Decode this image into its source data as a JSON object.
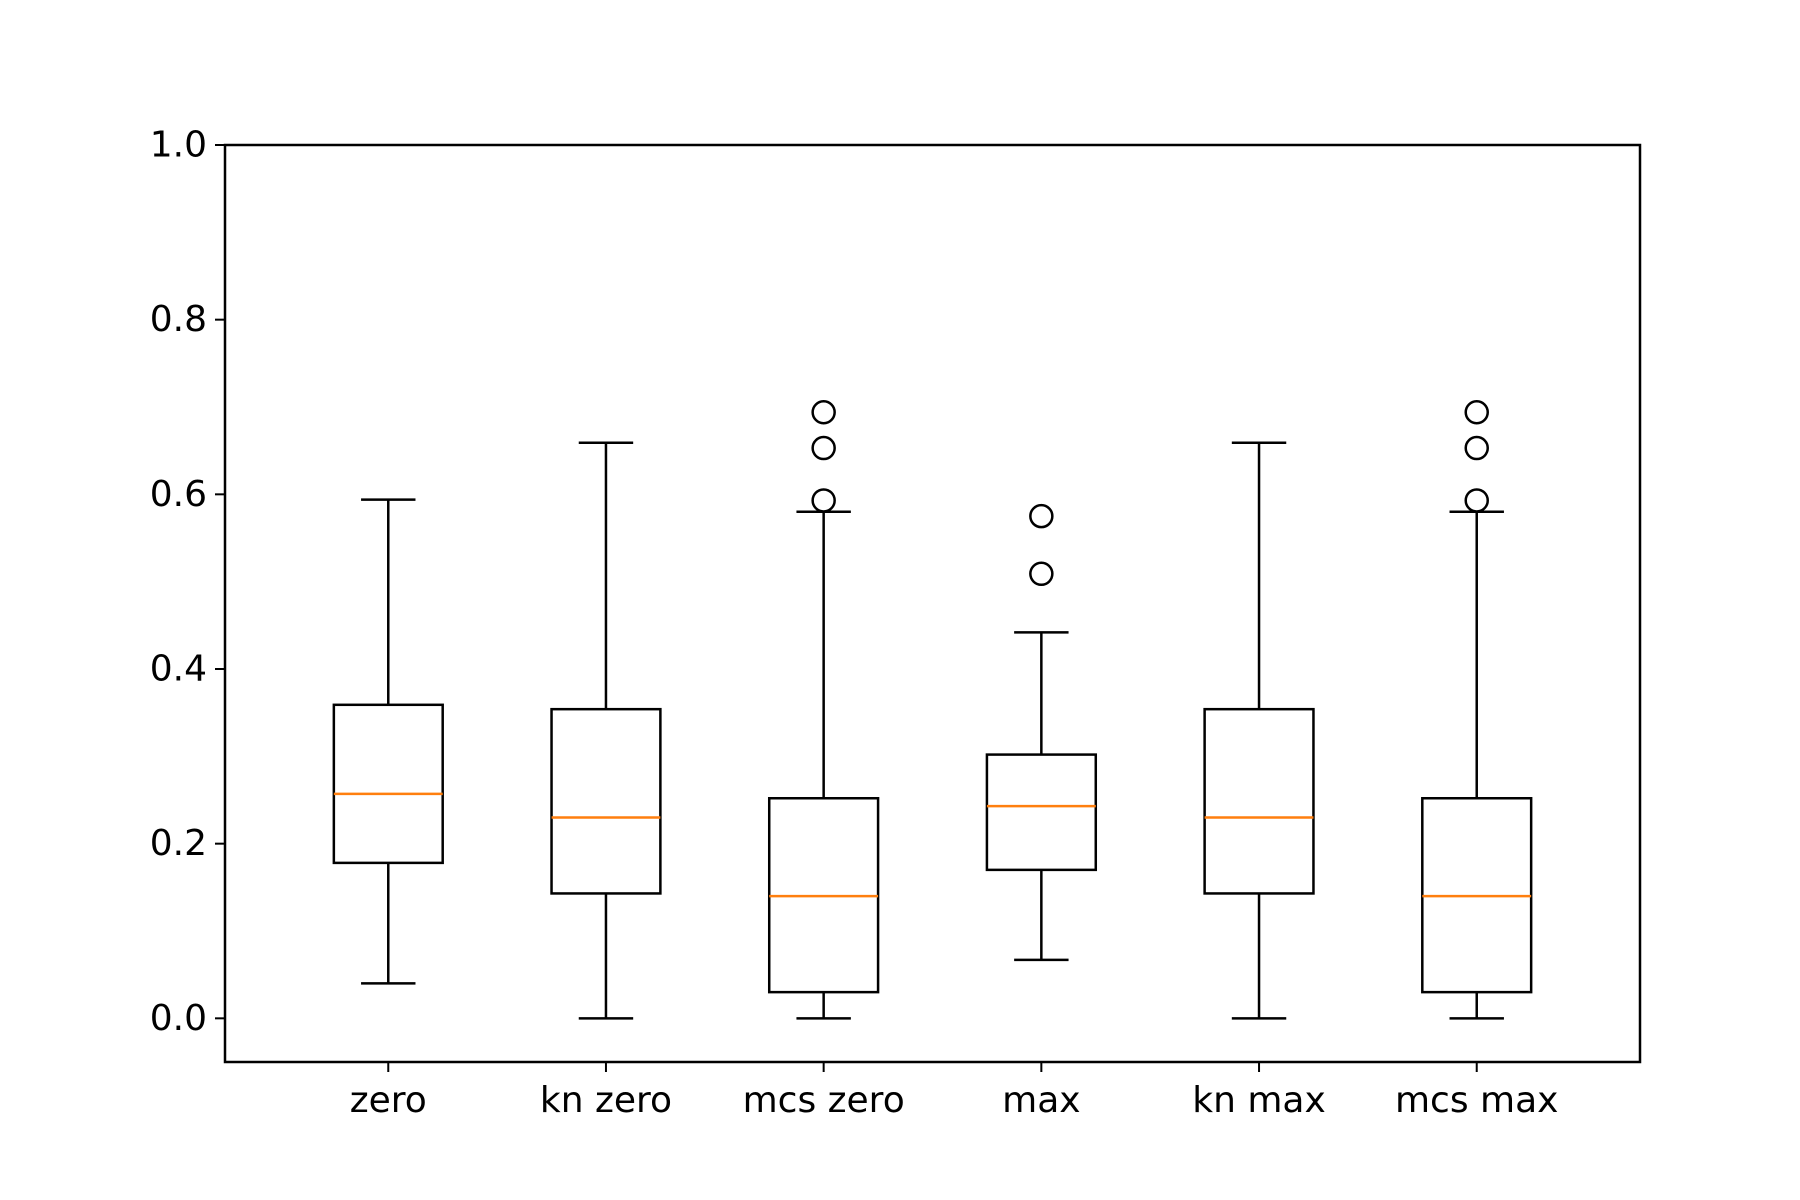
{
  "chart_data": {
    "type": "box",
    "title": "",
    "xlabel": "",
    "ylabel": "",
    "ylim": [
      -0.05,
      1.0
    ],
    "yticks": [
      0.0,
      0.2,
      0.4,
      0.6,
      0.8,
      1.0
    ],
    "ytick_labels": [
      "0.0",
      "0.2",
      "0.4",
      "0.6",
      "0.8",
      "1.0"
    ],
    "grid": false,
    "colors": {
      "box": "#000000",
      "median": "#ff7f0e",
      "flier": "#000000"
    },
    "categories": [
      "zero",
      "kn zero",
      "mcs zero",
      "max",
      "kn max",
      "mcs max"
    ],
    "boxes": [
      {
        "label": "zero",
        "whislo": 0.04,
        "q1": 0.178,
        "med": 0.257,
        "q3": 0.359,
        "whishi": 0.594,
        "fliers": []
      },
      {
        "label": "kn zero",
        "whislo": 0.0,
        "q1": 0.143,
        "med": 0.23,
        "q3": 0.354,
        "whishi": 0.659,
        "fliers": []
      },
      {
        "label": "mcs zero",
        "whislo": 0.0,
        "q1": 0.03,
        "med": 0.14,
        "q3": 0.252,
        "whishi": 0.58,
        "fliers": [
          0.593,
          0.653,
          0.694
        ]
      },
      {
        "label": "max",
        "whislo": 0.067,
        "q1": 0.17,
        "med": 0.243,
        "q3": 0.302,
        "whishi": 0.442,
        "fliers": [
          0.509,
          0.575
        ]
      },
      {
        "label": "kn max",
        "whislo": 0.0,
        "q1": 0.143,
        "med": 0.23,
        "q3": 0.354,
        "whishi": 0.659,
        "fliers": []
      },
      {
        "label": "mcs max",
        "whislo": 0.0,
        "q1": 0.03,
        "med": 0.14,
        "q3": 0.252,
        "whishi": 0.58,
        "fliers": [
          0.593,
          0.653,
          0.694
        ]
      }
    ]
  }
}
